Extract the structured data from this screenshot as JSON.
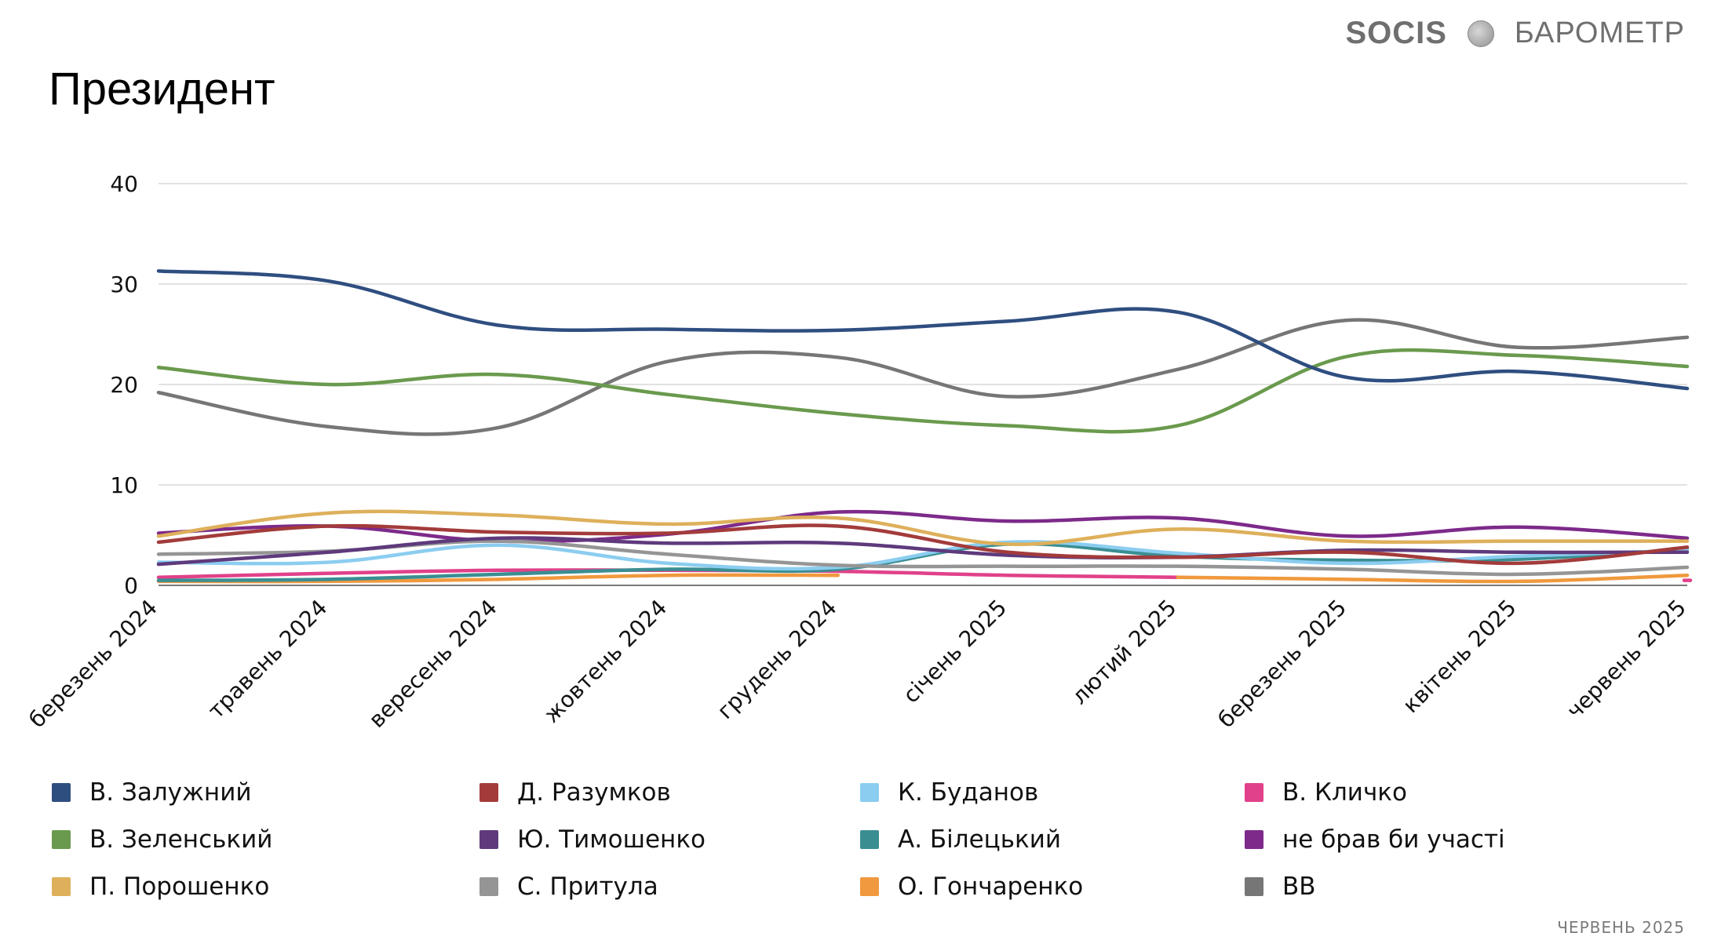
{
  "brand": {
    "socis": "SOCIS",
    "barometer": "БАРОМЕТР"
  },
  "title": "Президент",
  "footer_date": "ЧЕРВЕНЬ 2025",
  "chart_data": {
    "type": "line",
    "title": "Президент",
    "xlabel": "",
    "ylabel": "",
    "ylim": [
      0,
      40
    ],
    "yticks": [
      0,
      10,
      20,
      30,
      40
    ],
    "grid": true,
    "legend_position": "bottom",
    "categories": [
      "березень 2024",
      "травень 2024",
      "вересень 2024",
      "жовтень 2024",
      "грудень 2024",
      "січень 2025",
      "лютий 2025",
      "березень 2025",
      "квітень 2025",
      "червень 2025"
    ],
    "series": [
      {
        "name": "В. Залужний",
        "color": "#2f4e80",
        "values": [
          31.3,
          30.3,
          25.9,
          25.5,
          25.4,
          26.3,
          27.2,
          20.7,
          21.3,
          19.6
        ]
      },
      {
        "name": "В. Зеленський",
        "color": "#6a9a4d",
        "values": [
          21.7,
          20.0,
          21.0,
          19.0,
          17.1,
          15.9,
          15.9,
          22.8,
          22.9,
          21.8
        ]
      },
      {
        "name": "П. Порошенко",
        "color": "#deb05b",
        "values": [
          4.9,
          7.2,
          7.0,
          6.1,
          6.7,
          4.1,
          5.6,
          4.4,
          4.4,
          4.4
        ]
      },
      {
        "name": "Д. Разумков",
        "color": "#a33b3b",
        "values": [
          4.3,
          5.9,
          5.3,
          5.2,
          5.9,
          3.3,
          2.8,
          3.3,
          2.2,
          3.8
        ]
      },
      {
        "name": "Ю. Тимошенко",
        "color": "#5e3a7c",
        "values": [
          2.1,
          3.3,
          4.7,
          4.2,
          4.2,
          3.0,
          2.8,
          3.5,
          3.3,
          3.3
        ]
      },
      {
        "name": "С. Притула",
        "color": "#959595",
        "values": [
          3.1,
          3.4,
          4.4,
          3.1,
          2.0,
          1.9,
          1.9,
          1.6,
          1.1,
          1.8
        ]
      },
      {
        "name": "К. Буданов",
        "color": "#8bcdf0",
        "values": [
          2.3,
          2.3,
          4.0,
          2.2,
          1.8,
          4.3,
          3.2,
          2.2,
          2.9,
          3.5
        ]
      },
      {
        "name": "А. Білецький",
        "color": "#3a8e92",
        "values": [
          0.5,
          0.6,
          1.1,
          1.6,
          1.6,
          4.1,
          2.9,
          2.5,
          2.6,
          3.6
        ]
      },
      {
        "name": "О. Гончаренко",
        "color": "#f0993e",
        "values": [
          0.4,
          0.4,
          0.6,
          1.0,
          1.0,
          null,
          0.8,
          0.6,
          0.4,
          1.0
        ]
      },
      {
        "name": "В. Кличко",
        "color": "#e1418a",
        "values": [
          0.8,
          1.2,
          1.5,
          1.5,
          1.4,
          1.0,
          0.8,
          null,
          null,
          0.5
        ]
      },
      {
        "name": "не брав би участі",
        "color": "#7d2a8a",
        "values": [
          5.2,
          5.9,
          4.4,
          5.1,
          7.3,
          6.4,
          6.7,
          4.9,
          5.8,
          4.7
        ]
      },
      {
        "name": "ВВ",
        "color": "#767676",
        "values": [
          19.2,
          15.8,
          15.7,
          22.3,
          22.7,
          18.8,
          21.5,
          26.4,
          23.7,
          24.7
        ]
      }
    ]
  }
}
